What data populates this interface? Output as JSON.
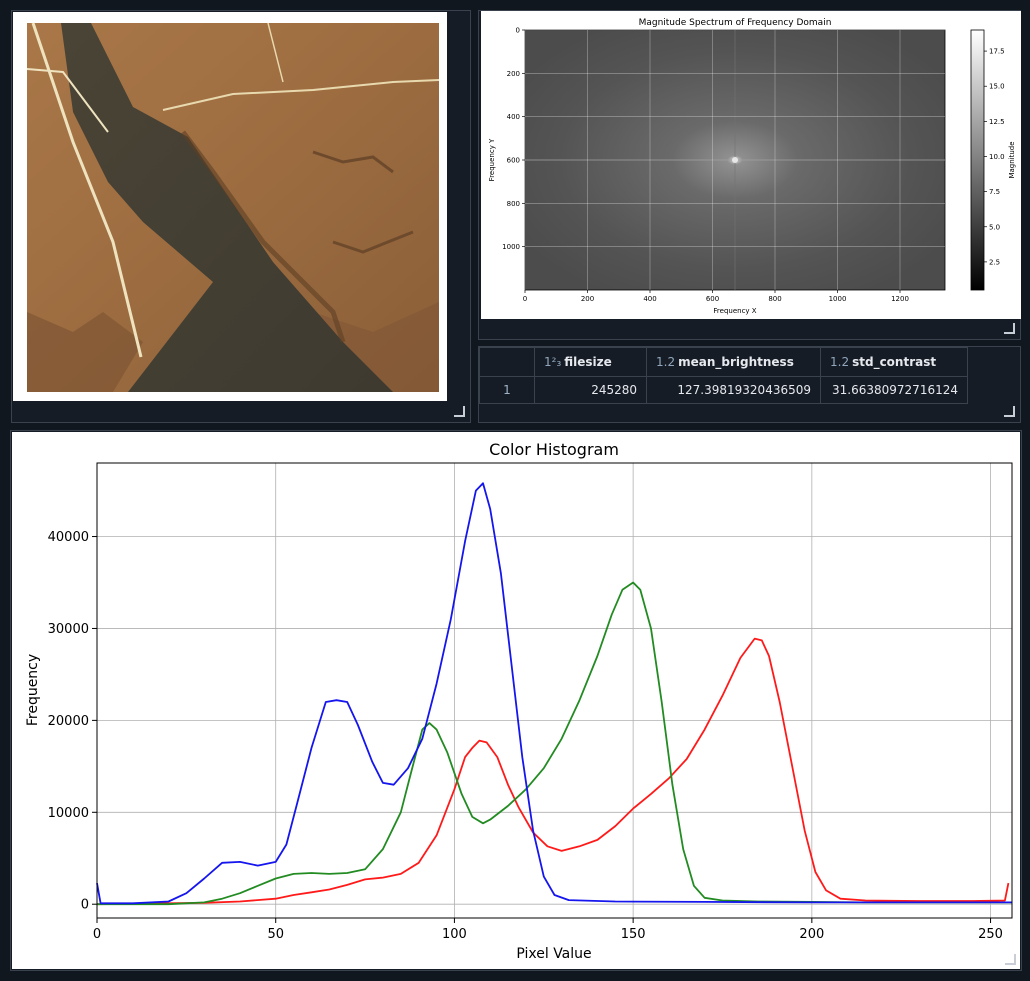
{
  "table": {
    "columns": [
      {
        "dtype": "1²₃",
        "name": "filesize"
      },
      {
        "dtype": "1.2",
        "name": "mean_brightness"
      },
      {
        "dtype": "1.2",
        "name": "std_contrast"
      }
    ],
    "rows": [
      {
        "index": "1",
        "filesize": "245280",
        "mean_brightness": "127.39819320436509",
        "std_contrast": "31.66380972716124"
      }
    ]
  },
  "colors": {
    "background": "#11171f",
    "red": "#ff1a1a",
    "green": "#228b22",
    "blue": "#1515ee"
  },
  "chart_data": [
    {
      "type": "heatmap",
      "title": "Magnitude Spectrum of Frequency Domain",
      "xlabel": "Frequency X",
      "ylabel": "Frequency Y",
      "xlim": [
        0,
        1344
      ],
      "ylim": [
        1200,
        0
      ],
      "xticks": [
        0,
        200,
        400,
        600,
        800,
        1000,
        1200
      ],
      "yticks": [
        0,
        200,
        400,
        600,
        800,
        1000
      ],
      "colorbar": {
        "label": "Magnitude",
        "range": [
          0.5,
          19
        ],
        "ticks": [
          2.5,
          5.0,
          7.5,
          10.0,
          12.5,
          15.0,
          17.5
        ],
        "colormap": "gray"
      },
      "peak": {
        "x": 672,
        "y": 600
      },
      "grid": true
    },
    {
      "type": "line",
      "title": "Color Histogram",
      "xlabel": "Pixel Value",
      "ylabel": "Frequency",
      "xlim": [
        0,
        256
      ],
      "ylim": [
        -1500,
        48000
      ],
      "xticks": [
        0,
        50,
        100,
        150,
        200,
        250
      ],
      "yticks": [
        0,
        10000,
        20000,
        30000,
        40000
      ],
      "grid": true,
      "series": [
        {
          "color": "red",
          "points": [
            [
              0,
              0
            ],
            [
              10,
              50
            ],
            [
              20,
              100
            ],
            [
              30,
              150
            ],
            [
              40,
              300
            ],
            [
              50,
              600
            ],
            [
              55,
              1000
            ],
            [
              60,
              1300
            ],
            [
              65,
              1600
            ],
            [
              70,
              2100
            ],
            [
              75,
              2700
            ],
            [
              80,
              2900
            ],
            [
              85,
              3300
            ],
            [
              90,
              4500
            ],
            [
              95,
              7500
            ],
            [
              100,
              12500
            ],
            [
              103,
              16000
            ],
            [
              105,
              17000
            ],
            [
              107,
              17800
            ],
            [
              109,
              17600
            ],
            [
              112,
              16000
            ],
            [
              115,
              13000
            ],
            [
              118,
              10500
            ],
            [
              122,
              7800
            ],
            [
              126,
              6300
            ],
            [
              130,
              5800
            ],
            [
              135,
              6300
            ],
            [
              140,
              7000
            ],
            [
              145,
              8500
            ],
            [
              150,
              10400
            ],
            [
              155,
              12000
            ],
            [
              160,
              13700
            ],
            [
              165,
              15800
            ],
            [
              170,
              19000
            ],
            [
              175,
              22700
            ],
            [
              180,
              26800
            ],
            [
              184,
              28900
            ],
            [
              186,
              28700
            ],
            [
              188,
              27000
            ],
            [
              191,
              22000
            ],
            [
              195,
              14000
            ],
            [
              198,
              8000
            ],
            [
              201,
              3500
            ],
            [
              204,
              1500
            ],
            [
              208,
              600
            ],
            [
              215,
              400
            ],
            [
              230,
              350
            ],
            [
              245,
              350
            ],
            [
              254,
              400
            ],
            [
              255,
              2300
            ]
          ]
        },
        {
          "color": "green",
          "points": [
            [
              0,
              0
            ],
            [
              10,
              0
            ],
            [
              20,
              0
            ],
            [
              30,
              200
            ],
            [
              35,
              600
            ],
            [
              40,
              1200
            ],
            [
              45,
              2000
            ],
            [
              50,
              2800
            ],
            [
              55,
              3300
            ],
            [
              60,
              3400
            ],
            [
              65,
              3300
            ],
            [
              70,
              3400
            ],
            [
              75,
              3800
            ],
            [
              80,
              6000
            ],
            [
              85,
              10000
            ],
            [
              88,
              14500
            ],
            [
              91,
              19000
            ],
            [
              93,
              19700
            ],
            [
              95,
              19000
            ],
            [
              98,
              16500
            ],
            [
              102,
              12000
            ],
            [
              105,
              9500
            ],
            [
              108,
              8800
            ],
            [
              110,
              9200
            ],
            [
              115,
              10700
            ],
            [
              120,
              12500
            ],
            [
              125,
              14800
            ],
            [
              130,
              18000
            ],
            [
              135,
              22200
            ],
            [
              140,
              27000
            ],
            [
              144,
              31500
            ],
            [
              147,
              34200
            ],
            [
              150,
              35000
            ],
            [
              152,
              34200
            ],
            [
              155,
              30000
            ],
            [
              158,
              22000
            ],
            [
              161,
              13000
            ],
            [
              164,
              6000
            ],
            [
              167,
              2000
            ],
            [
              170,
              700
            ],
            [
              175,
              400
            ],
            [
              185,
              300
            ],
            [
              200,
              250
            ],
            [
              215,
              200
            ],
            [
              230,
              200
            ],
            [
              245,
              200
            ],
            [
              256,
              200
            ]
          ]
        },
        {
          "color": "blue",
          "points": [
            [
              0,
              2300
            ],
            [
              1,
              100
            ],
            [
              10,
              100
            ],
            [
              20,
              300
            ],
            [
              25,
              1200
            ],
            [
              30,
              2800
            ],
            [
              35,
              4500
            ],
            [
              40,
              4600
            ],
            [
              45,
              4200
            ],
            [
              50,
              4600
            ],
            [
              53,
              6500
            ],
            [
              56,
              11000
            ],
            [
              60,
              17000
            ],
            [
              64,
              22000
            ],
            [
              67,
              22200
            ],
            [
              70,
              22000
            ],
            [
              73,
              19500
            ],
            [
              77,
              15500
            ],
            [
              80,
              13200
            ],
            [
              83,
              13000
            ],
            [
              87,
              14800
            ],
            [
              91,
              18000
            ],
            [
              95,
              24000
            ],
            [
              99,
              31000
            ],
            [
              103,
              39500
            ],
            [
              106,
              45000
            ],
            [
              108,
              45800
            ],
            [
              110,
              43000
            ],
            [
              113,
              36000
            ],
            [
              116,
              26000
            ],
            [
              119,
              16000
            ],
            [
              122,
              8000
            ],
            [
              125,
              3000
            ],
            [
              128,
              1000
            ],
            [
              132,
              450
            ],
            [
              145,
              300
            ],
            [
              170,
              250
            ],
            [
              200,
              200
            ],
            [
              230,
              200
            ],
            [
              256,
              200
            ]
          ]
        }
      ]
    }
  ]
}
